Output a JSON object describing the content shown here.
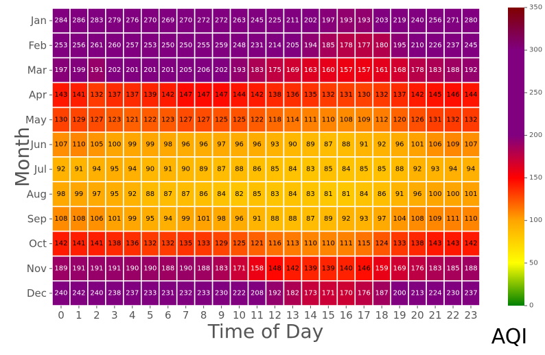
{
  "chart_data": {
    "type": "heatmap",
    "title": "",
    "xlabel": "Time of Day",
    "ylabel": "Month",
    "x": [
      "0",
      "1",
      "2",
      "3",
      "4",
      "5",
      "6",
      "7",
      "8",
      "9",
      "10",
      "11",
      "12",
      "13",
      "14",
      "15",
      "16",
      "17",
      "18",
      "19",
      "20",
      "21",
      "22",
      "23"
    ],
    "y": [
      "Jan",
      "Feb",
      "Mar",
      "Apr",
      "May",
      "Jun",
      "Jul",
      "Aug",
      "Sep",
      "Oct",
      "Nov",
      "Dec"
    ],
    "values": [
      [
        284,
        286,
        283,
        279,
        276,
        270,
        269,
        270,
        272,
        272,
        263,
        245,
        225,
        211,
        202,
        197,
        193,
        193,
        203,
        219,
        240,
        256,
        271,
        280
      ],
      [
        253,
        256,
        261,
        260,
        257,
        253,
        250,
        250,
        255,
        259,
        248,
        231,
        214,
        205,
        194,
        185,
        178,
        177,
        180,
        195,
        210,
        226,
        237,
        245
      ],
      [
        197,
        199,
        191,
        202,
        201,
        201,
        201,
        205,
        206,
        202,
        193,
        183,
        175,
        169,
        163,
        160,
        157,
        157,
        161,
        168,
        178,
        183,
        188,
        192
      ],
      [
        143,
        141,
        132,
        137,
        137,
        139,
        142,
        147,
        147,
        147,
        144,
        142,
        138,
        136,
        135,
        132,
        131,
        130,
        132,
        137,
        142,
        145,
        146,
        144
      ],
      [
        130,
        129,
        127,
        123,
        121,
        122,
        123,
        127,
        127,
        125,
        125,
        122,
        118,
        114,
        111,
        110,
        108,
        109,
        112,
        120,
        126,
        131,
        132,
        132
      ],
      [
        107,
        110,
        105,
        100,
        99,
        99,
        98,
        96,
        96,
        97,
        96,
        96,
        93,
        90,
        89,
        87,
        88,
        91,
        92,
        96,
        101,
        106,
        109,
        107
      ],
      [
        92,
        91,
        94,
        95,
        94,
        90,
        91,
        90,
        89,
        87,
        88,
        86,
        85,
        84,
        83,
        85,
        84,
        85,
        85,
        88,
        92,
        93,
        94,
        94
      ],
      [
        98,
        99,
        97,
        95,
        92,
        88,
        87,
        87,
        86,
        84,
        82,
        85,
        83,
        84,
        83,
        81,
        81,
        84,
        86,
        91,
        96,
        100,
        100,
        101
      ],
      [
        108,
        108,
        106,
        101,
        99,
        95,
        94,
        99,
        101,
        98,
        96,
        91,
        88,
        88,
        87,
        89,
        92,
        93,
        97,
        104,
        108,
        109,
        111,
        110
      ],
      [
        142,
        141,
        141,
        138,
        136,
        132,
        132,
        135,
        133,
        129,
        125,
        121,
        116,
        113,
        110,
        110,
        111,
        115,
        124,
        133,
        138,
        143,
        143,
        142
      ],
      [
        189,
        191,
        191,
        191,
        190,
        190,
        188,
        190,
        188,
        183,
        171,
        158,
        148,
        142,
        139,
        139,
        140,
        146,
        159,
        169,
        176,
        183,
        185,
        188
      ],
      [
        240,
        242,
        240,
        238,
        237,
        233,
        231,
        232,
        233,
        230,
        222,
        208,
        192,
        182,
        173,
        171,
        170,
        176,
        187,
        200,
        213,
        224,
        230,
        237
      ]
    ],
    "colorbar": {
      "label": "AQI",
      "range": [
        0,
        350
      ],
      "ticks": [
        0,
        50,
        100,
        150,
        200,
        250,
        300,
        350
      ],
      "colors": [
        {
          "stop": 0,
          "color": "#008000"
        },
        {
          "stop": 50,
          "color": "#ffff00"
        },
        {
          "stop": 100,
          "color": "#ffa500"
        },
        {
          "stop": 150,
          "color": "#ff0000"
        },
        {
          "stop": 200,
          "color": "#800080"
        },
        {
          "stop": 300,
          "color": "#800080"
        },
        {
          "stop": 350,
          "color": "#800000"
        }
      ]
    },
    "cell_text_colors": {
      "dark": "#000000",
      "light": "#ffffff"
    },
    "grid_line_color": "#ffffff"
  }
}
